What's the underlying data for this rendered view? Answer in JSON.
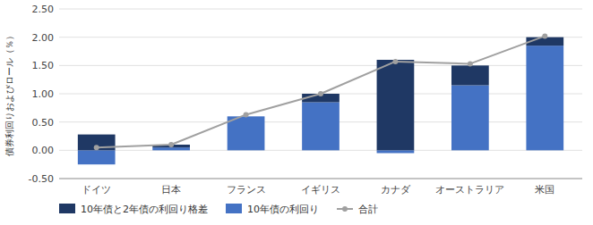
{
  "chart_data": {
    "type": "bar",
    "categories": [
      "ドイツ",
      "日本",
      "フランス",
      "イギリス",
      "カナダ",
      "オーストラリア",
      "米国"
    ],
    "series": [
      {
        "name": "10年債と2年債の利回り格差",
        "type": "bar",
        "color": "#1f3864",
        "values": [
          0.28,
          0.05,
          0.0,
          0.15,
          1.6,
          0.35,
          0.15
        ]
      },
      {
        "name": "10年債の利回り",
        "type": "bar",
        "color": "#4472c4",
        "values": [
          -0.25,
          0.05,
          0.6,
          0.85,
          -0.05,
          1.15,
          1.85
        ]
      },
      {
        "name": "合計",
        "type": "line",
        "color": "#a0a0a0",
        "marker": "circle",
        "values": [
          0.05,
          0.1,
          0.63,
          1.0,
          1.57,
          1.53,
          2.02
        ]
      }
    ],
    "ylabel": "債券利回りおよびロール（％）",
    "ylim": [
      -0.5,
      2.5
    ],
    "yticks": [
      {
        "value": -0.5,
        "label": "-0.50"
      },
      {
        "value": 0,
        "label": "0.00"
      },
      {
        "value": 0.5,
        "label": "0.50"
      },
      {
        "value": 1,
        "label": "1.00"
      },
      {
        "value": 1.5,
        "label": "1.50"
      },
      {
        "value": 2,
        "label": "2.00"
      },
      {
        "value": 2.5,
        "label": "2.50"
      }
    ],
    "stacked": true,
    "grid": true,
    "legend": "bottom"
  }
}
